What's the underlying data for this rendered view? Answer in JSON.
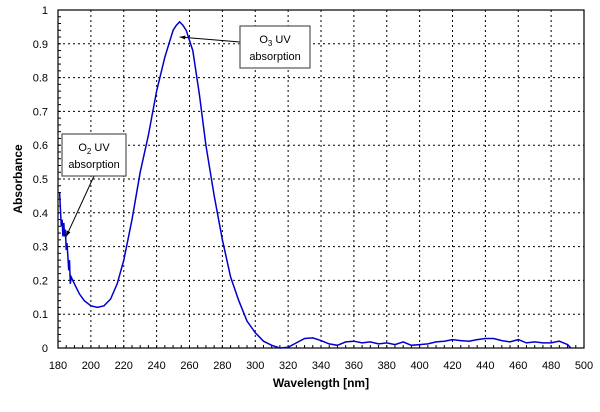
{
  "chart_data": {
    "type": "line",
    "title": "",
    "xlabel": "Wavelength [nm]",
    "ylabel": "Absorbance",
    "xlim": [
      180,
      500
    ],
    "ylim": [
      0,
      1
    ],
    "xticks": [
      180,
      200,
      220,
      240,
      260,
      280,
      300,
      320,
      340,
      360,
      380,
      400,
      420,
      440,
      460,
      480,
      500
    ],
    "yticks": [
      0,
      0.1,
      0.2,
      0.3,
      0.4,
      0.5,
      0.6,
      0.7,
      0.8,
      0.9,
      1
    ],
    "grid": true,
    "series_color": "#0000cc",
    "series": [
      {
        "x": [
          181,
          182,
          182.5,
          183,
          183.5,
          184,
          184.5,
          185,
          185.5,
          186,
          186.5,
          187,
          187.5,
          188,
          190,
          193,
          196,
          200,
          204,
          208,
          212,
          216,
          220,
          225,
          230,
          235,
          240,
          245,
          250,
          252,
          254,
          256,
          258,
          262,
          266,
          270,
          275,
          280,
          285,
          290,
          295,
          300,
          305,
          310,
          315,
          320,
          325,
          330,
          335,
          340,
          345,
          350,
          355,
          360,
          365,
          370,
          375,
          380,
          385,
          390,
          395,
          400,
          405,
          410,
          415,
          420,
          425,
          430,
          435,
          440,
          445,
          450,
          455,
          460,
          465,
          470,
          475,
          480,
          485,
          490,
          492
        ],
        "y": [
          0.46,
          0.36,
          0.38,
          0.33,
          0.37,
          0.33,
          0.35,
          0.29,
          0.31,
          0.27,
          0.23,
          0.26,
          0.19,
          0.21,
          0.19,
          0.16,
          0.14,
          0.125,
          0.12,
          0.125,
          0.145,
          0.19,
          0.26,
          0.38,
          0.52,
          0.63,
          0.76,
          0.86,
          0.94,
          0.955,
          0.965,
          0.955,
          0.94,
          0.88,
          0.75,
          0.6,
          0.45,
          0.32,
          0.21,
          0.14,
          0.08,
          0.045,
          0.02,
          0.008,
          0.0,
          0.002,
          0.015,
          0.028,
          0.03,
          0.022,
          0.012,
          0.008,
          0.018,
          0.02,
          0.015,
          0.018,
          0.012,
          0.015,
          0.01,
          0.018,
          0.008,
          0.01,
          0.012,
          0.018,
          0.02,
          0.025,
          0.022,
          0.02,
          0.025,
          0.028,
          0.028,
          0.022,
          0.018,
          0.025,
          0.015,
          0.018,
          0.015,
          0.015,
          0.02,
          0.01,
          0.0
        ]
      }
    ],
    "annotations": [
      {
        "line1_main": "O",
        "line1_sub": "3",
        "line1_rest": " UV",
        "line2": "absorption",
        "target_x": 254,
        "target_y": 0.92
      },
      {
        "line1_main": "O",
        "line1_sub": "2",
        "line1_rest": " UV",
        "line2": "absorption",
        "target_x": 185,
        "target_y": 0.33
      }
    ]
  }
}
